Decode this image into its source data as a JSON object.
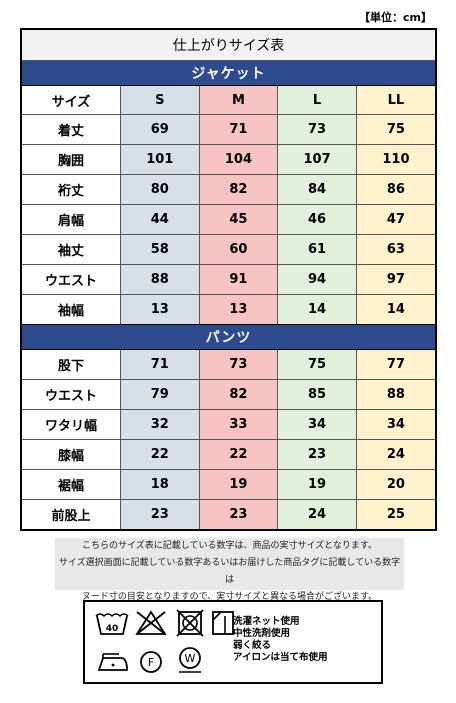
{
  "unit_label": "【単位：cm】",
  "title": "仕上がりサイズ表",
  "header": {
    "label": "サイズ",
    "sizes": [
      "S",
      "M",
      "L",
      "LL"
    ]
  },
  "jacket": {
    "heading": "ジャケット",
    "rows": [
      {
        "label": "着丈",
        "values": [
          "69",
          "71",
          "73",
          "75"
        ]
      },
      {
        "label": "胸囲",
        "values": [
          "101",
          "104",
          "107",
          "110"
        ]
      },
      {
        "label": "裄丈",
        "values": [
          "80",
          "82",
          "84",
          "86"
        ]
      },
      {
        "label": "肩幅",
        "values": [
          "44",
          "45",
          "46",
          "47"
        ]
      },
      {
        "label": "袖丈",
        "values": [
          "58",
          "60",
          "61",
          "63"
        ]
      },
      {
        "label": "ウエスト",
        "values": [
          "88",
          "91",
          "94",
          "97"
        ]
      },
      {
        "label": "袖幅",
        "values": [
          "13",
          "13",
          "14",
          "14"
        ]
      }
    ]
  },
  "pants": {
    "heading": "パンツ",
    "rows": [
      {
        "label": "股下",
        "values": [
          "71",
          "73",
          "75",
          "77"
        ]
      },
      {
        "label": "ウエスト",
        "values": [
          "79",
          "82",
          "85",
          "88"
        ]
      },
      {
        "label": "ワタリ幅",
        "values": [
          "32",
          "33",
          "34",
          "34"
        ]
      },
      {
        "label": "膝幅",
        "values": [
          "22",
          "22",
          "23",
          "24"
        ]
      },
      {
        "label": "裾幅",
        "values": [
          "18",
          "19",
          "19",
          "20"
        ]
      },
      {
        "label": "前股上",
        "values": [
          "23",
          "23",
          "24",
          "25"
        ]
      }
    ]
  },
  "note_lines": [
    "こちらのサイズ表に記載している数字は、商品の実寸サイズとなります。",
    "サイズ選択画面に記載している数字あるいはお届けした商品タグに記載している数字は",
    "ヌード寸の目安となりますので、実寸サイズと異なる場合がございます。"
  ],
  "care": {
    "wash_temp": "40",
    "dry_clean_f": "F",
    "wet_clean_w": "W",
    "lines": [
      "洗濯ネット使用",
      "中性洗剤使用",
      "弱く絞る",
      "アイロンは当て布使用"
    ]
  }
}
